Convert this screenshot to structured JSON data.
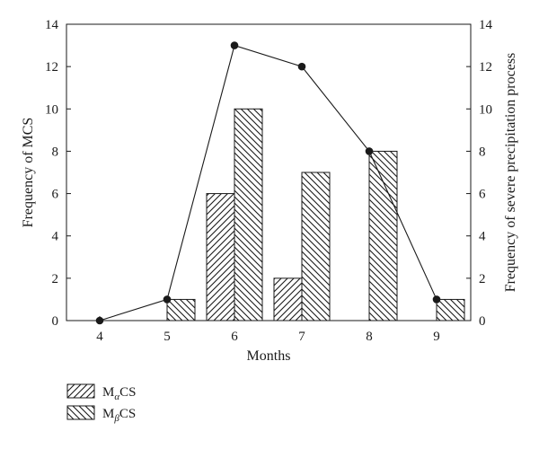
{
  "chart_data": {
    "type": "bar",
    "categories": [
      "4",
      "5",
      "6",
      "7",
      "8",
      "9"
    ],
    "series": [
      {
        "name": "MαCS",
        "kind": "bar",
        "axis": "left",
        "hatch": "forward",
        "values": [
          0,
          0,
          6,
          2,
          0,
          0
        ]
      },
      {
        "name": "MβCS",
        "kind": "bar",
        "axis": "left",
        "hatch": "backward",
        "values": [
          0,
          1,
          10,
          7,
          8,
          1
        ]
      },
      {
        "name": "",
        "kind": "line",
        "axis": "right",
        "marker": "filled-circle",
        "values": [
          0,
          1,
          13,
          12,
          8,
          1
        ]
      }
    ],
    "xlabel": "Months",
    "ylabel": "Frequency of MCS",
    "y2label": "Frequency of severe precipitation process",
    "ylim": [
      0,
      14
    ],
    "y2lim": [
      0,
      14
    ],
    "yticks": [
      0,
      2,
      4,
      6,
      8,
      10,
      12,
      14
    ],
    "grid": false,
    "legend_position": "bottom-left",
    "legend": [
      {
        "main": "M",
        "sub": "α",
        "suffix": "CS"
      },
      {
        "main": "M",
        "sub": "β",
        "suffix": "CS"
      }
    ],
    "colors": {
      "ink": "#1a1a1a",
      "background": "#ffffff"
    }
  }
}
